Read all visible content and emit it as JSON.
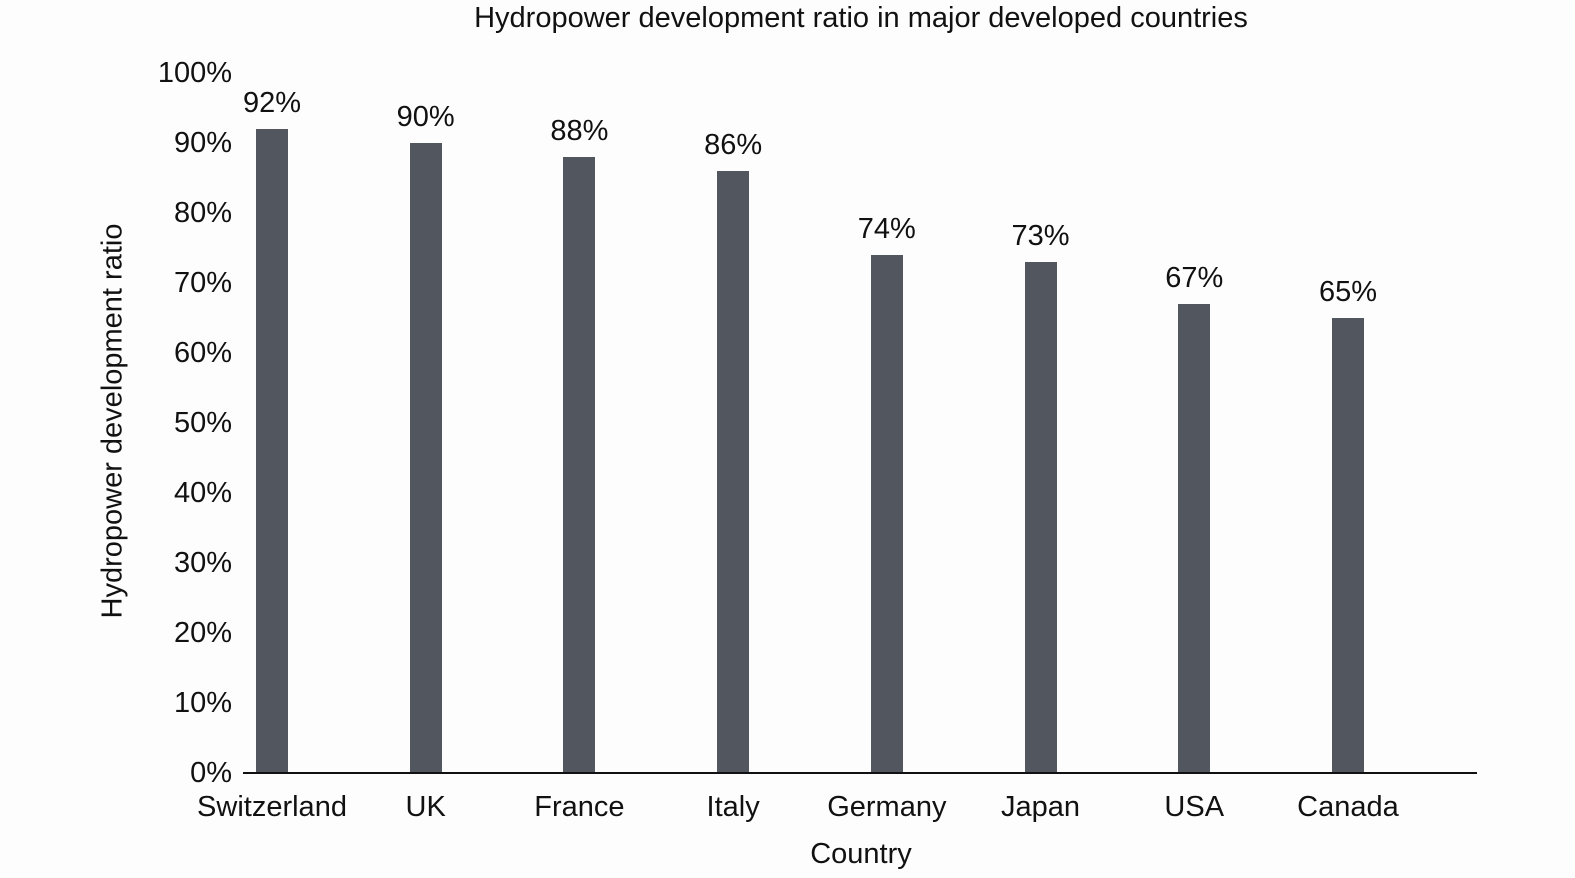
{
  "chart_data": {
    "type": "bar",
    "title": "Hydropower development ratio in major developed countries",
    "xlabel": "Country",
    "ylabel": "Hydropower development ratio",
    "categories": [
      "Switzerland",
      "UK",
      "France",
      "Italy",
      "Germany",
      "Japan",
      "USA",
      "Canada"
    ],
    "values": [
      92,
      90,
      88,
      86,
      74,
      73,
      67,
      65
    ],
    "value_labels": [
      "92%",
      "90%",
      "88%",
      "86%",
      "74%",
      "73%",
      "67%",
      "65%"
    ],
    "ylim": [
      0,
      100
    ],
    "ytick_labels": [
      "0%",
      "10%",
      "20%",
      "30%",
      "40%",
      "50%",
      "60%",
      "70%",
      "80%",
      "90%",
      "100%"
    ],
    "grid": false,
    "legend": "none",
    "colors": {
      "bar": "#52565e",
      "axis": "#111111",
      "text": "#111111",
      "background": "#fdfdfd"
    }
  }
}
